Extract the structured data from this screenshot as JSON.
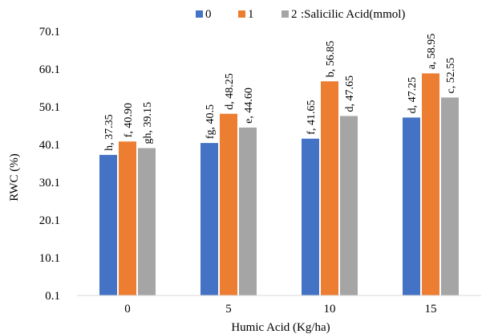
{
  "chart_data": {
    "type": "bar",
    "categories": [
      "0",
      "5",
      "10",
      "15"
    ],
    "series": [
      {
        "name": "0",
        "color": "#4472C4",
        "values": [
          37.35,
          40.5,
          41.65,
          47.25
        ],
        "labels": [
          "h, 37.35",
          "fg, 40.5",
          "f, 41.65",
          "d, 47.25"
        ]
      },
      {
        "name": "1",
        "color": "#ED7D31",
        "values": [
          40.9,
          48.25,
          56.85,
          58.95
        ],
        "labels": [
          "f, 40.90",
          "d, 48.25",
          "b, 56.85",
          "a, 58.95"
        ]
      },
      {
        "name": "2",
        "color": "#A5A5A5",
        "values": [
          39.15,
          44.6,
          47.65,
          52.55
        ],
        "labels": [
          "gh, 39.15",
          "e, 44.60",
          "d, 47.65",
          "c, 52.55"
        ]
      }
    ],
    "legend_suffix": ":Salicilic Acid(mmol)",
    "legend_position": "top",
    "xlabel": "Humic Acid (Kg/ha)",
    "ylabel": "RWC (%)",
    "yticks": [
      "0.1",
      "10.1",
      "20.1",
      "30.1",
      "40.1",
      "50.1",
      "60.1",
      "70.1"
    ],
    "ylim": [
      0.1,
      70.1
    ],
    "grid": false
  }
}
